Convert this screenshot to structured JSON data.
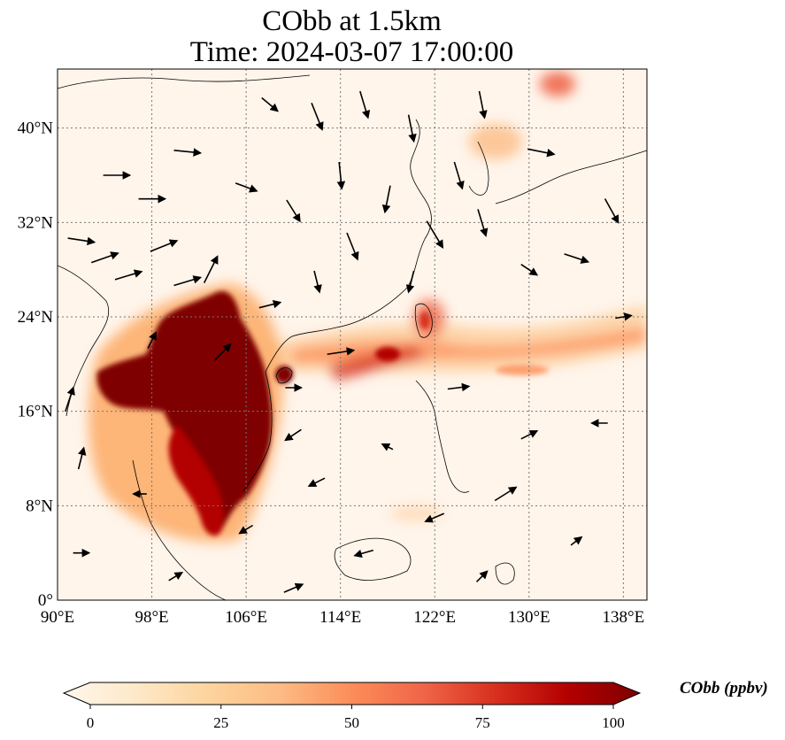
{
  "title": {
    "line1": "CObb at 1.5km",
    "line2": "Time: 2024-03-07 17:00:00"
  },
  "map": {
    "lon_range": [
      90,
      140
    ],
    "lat_range": [
      0,
      45
    ],
    "x_ticks": [
      {
        "lon": 90,
        "label": "90°E"
      },
      {
        "lon": 98,
        "label": "98°E"
      },
      {
        "lon": 106,
        "label": "106°E"
      },
      {
        "lon": 114,
        "label": "114°E"
      },
      {
        "lon": 122,
        "label": "122°E"
      },
      {
        "lon": 130,
        "label": "130°E"
      },
      {
        "lon": 138,
        "label": "138°E"
      }
    ],
    "y_ticks": [
      {
        "lat": 0,
        "label": "0°"
      },
      {
        "lat": 8,
        "label": "8°N"
      },
      {
        "lat": 16,
        "label": "16°N"
      },
      {
        "lat": 24,
        "label": "24°N"
      },
      {
        "lat": 32,
        "label": "32°N"
      },
      {
        "lat": 40,
        "label": "40°N"
      }
    ],
    "gridlines": true,
    "background_color": "#fff5eb",
    "field": "CObb concentration (ppbv), OrRd-like colormap",
    "plumes": [
      {
        "name": "indochina-core",
        "lon": 102.5,
        "lat": 17.5,
        "value": 100
      },
      {
        "name": "myanmar-core",
        "lon": 96.0,
        "lat": 18.5,
        "value": 100
      },
      {
        "name": "cambodia-core",
        "lon": 104.5,
        "lat": 12.5,
        "value": 100
      },
      {
        "name": "south-tail",
        "lon": 102.5,
        "lat": 7.0,
        "value": 95
      },
      {
        "name": "hainan-spot",
        "lon": 109.5,
        "lat": 19.0,
        "value": 90
      },
      {
        "name": "east-band",
        "lon": 120.0,
        "lat": 20.5,
        "value": 55
      },
      {
        "name": "pacific-band",
        "lon": 132.0,
        "lat": 22.0,
        "value": 40
      },
      {
        "name": "taiwan-spot",
        "lon": 121.0,
        "lat": 23.5,
        "value": 60
      },
      {
        "name": "korea-spot",
        "lon": 127.0,
        "lat": 39.0,
        "value": 40
      },
      {
        "name": "japan-sea-spot",
        "lon": 134.0,
        "lat": 44.0,
        "value": 60
      },
      {
        "name": "myanmar-south",
        "lon": 97.5,
        "lat": 14.0,
        "value": 45
      },
      {
        "name": "gulf-thailand",
        "lon": 101.0,
        "lat": 9.5,
        "value": 50
      }
    ],
    "wind_vectors": [
      {
        "lon": 92,
        "lat": 30.5,
        "u": 1.0,
        "v": -0.15
      },
      {
        "lon": 94,
        "lat": 29,
        "u": 1.0,
        "v": 0.35
      },
      {
        "lon": 96,
        "lat": 27.5,
        "u": 1.0,
        "v": 0.3
      },
      {
        "lon": 99,
        "lat": 30,
        "u": 1.0,
        "v": 0.4
      },
      {
        "lon": 101,
        "lat": 27,
        "u": 1.0,
        "v": 0.3
      },
      {
        "lon": 103,
        "lat": 28,
        "u": 0.5,
        "v": 1.0
      },
      {
        "lon": 98,
        "lat": 34,
        "u": 1.0,
        "v": 0.0
      },
      {
        "lon": 101,
        "lat": 38,
        "u": 1.0,
        "v": -0.1
      },
      {
        "lon": 95,
        "lat": 36,
        "u": 1.0,
        "v": 0.0
      },
      {
        "lon": 108,
        "lat": 42,
        "u": 0.6,
        "v": -0.5
      },
      {
        "lon": 112,
        "lat": 41,
        "u": 0.4,
        "v": -1.0
      },
      {
        "lon": 116,
        "lat": 42,
        "u": 0.3,
        "v": -1.0
      },
      {
        "lon": 120,
        "lat": 40,
        "u": 0.2,
        "v": -1.0
      },
      {
        "lon": 114,
        "lat": 36,
        "u": 0.1,
        "v": -1.0
      },
      {
        "lon": 118,
        "lat": 34,
        "u": -0.2,
        "v": -1.0
      },
      {
        "lon": 122,
        "lat": 31,
        "u": 0.6,
        "v": -1.0
      },
      {
        "lon": 120,
        "lat": 27,
        "u": -0.2,
        "v": -0.8
      },
      {
        "lon": 124,
        "lat": 36,
        "u": 0.3,
        "v": -1.0
      },
      {
        "lon": 126,
        "lat": 32,
        "u": 0.3,
        "v": -1.0
      },
      {
        "lon": 130,
        "lat": 28,
        "u": 0.6,
        "v": -0.4
      },
      {
        "lon": 134,
        "lat": 29,
        "u": 0.9,
        "v": -0.3
      },
      {
        "lon": 137,
        "lat": 33,
        "u": 0.5,
        "v": -0.9
      },
      {
        "lon": 131,
        "lat": 38,
        "u": 1.0,
        "v": -0.2
      },
      {
        "lon": 126,
        "lat": 42,
        "u": 0.2,
        "v": -1.0
      },
      {
        "lon": 110,
        "lat": 33,
        "u": 0.5,
        "v": -0.8
      },
      {
        "lon": 106,
        "lat": 35,
        "u": 0.8,
        "v": -0.3
      },
      {
        "lon": 112,
        "lat": 27,
        "u": 0.2,
        "v": -0.8
      },
      {
        "lon": 115,
        "lat": 30,
        "u": 0.4,
        "v": -1.0
      },
      {
        "lon": 108,
        "lat": 25,
        "u": 0.8,
        "v": 0.2
      },
      {
        "lon": 114,
        "lat": 21,
        "u": 1.0,
        "v": 0.15
      },
      {
        "lon": 124,
        "lat": 18,
        "u": 0.8,
        "v": 0.1
      },
      {
        "lon": 130,
        "lat": 14,
        "u": 0.6,
        "v": 0.3
      },
      {
        "lon": 136,
        "lat": 15,
        "u": -0.6,
        "v": 0.0
      },
      {
        "lon": 128,
        "lat": 9,
        "u": 0.8,
        "v": 0.5
      },
      {
        "lon": 122,
        "lat": 7,
        "u": -0.7,
        "v": -0.3
      },
      {
        "lon": 116,
        "lat": 4,
        "u": -0.7,
        "v": -0.2
      },
      {
        "lon": 112,
        "lat": 10,
        "u": -0.6,
        "v": -0.3
      },
      {
        "lon": 110,
        "lat": 14,
        "u": -0.6,
        "v": -0.4
      },
      {
        "lon": 118,
        "lat": 13,
        "u": -0.4,
        "v": 0.2
      },
      {
        "lon": 106,
        "lat": 6,
        "u": -0.5,
        "v": -0.3
      },
      {
        "lon": 97,
        "lat": 9,
        "u": -0.5,
        "v": 0.0
      },
      {
        "lon": 92,
        "lat": 12,
        "u": 0.2,
        "v": 0.8
      },
      {
        "lon": 91,
        "lat": 17,
        "u": 0.3,
        "v": 0.9
      },
      {
        "lon": 92,
        "lat": 4,
        "u": 0.6,
        "v": 0.0
      },
      {
        "lon": 100,
        "lat": 2,
        "u": 0.5,
        "v": 0.3
      },
      {
        "lon": 110,
        "lat": 1,
        "u": 0.7,
        "v": 0.3
      },
      {
        "lon": 126,
        "lat": 2,
        "u": 0.4,
        "v": 0.4
      },
      {
        "lon": 134,
        "lat": 5,
        "u": 0.4,
        "v": 0.3
      },
      {
        "lon": 138,
        "lat": 24,
        "u": 0.6,
        "v": 0.1
      },
      {
        "lon": 104,
        "lat": 21,
        "u": 0.6,
        "v": 0.6
      },
      {
        "lon": 98,
        "lat": 22,
        "u": 0.3,
        "v": 0.6
      },
      {
        "lon": 110,
        "lat": 18,
        "u": 0.6,
        "v": 0.0
      }
    ]
  },
  "colorbar": {
    "label": "CObb (ppbv)",
    "ticks": [
      "0",
      "25",
      "50",
      "75",
      "100"
    ],
    "min": 0,
    "max": 100,
    "colors": [
      "#fff7ec",
      "#fee8c8",
      "#fdd49e",
      "#fdbb84",
      "#fc8d59",
      "#ef6548",
      "#d7301f",
      "#b30000",
      "#7f0000"
    ]
  }
}
